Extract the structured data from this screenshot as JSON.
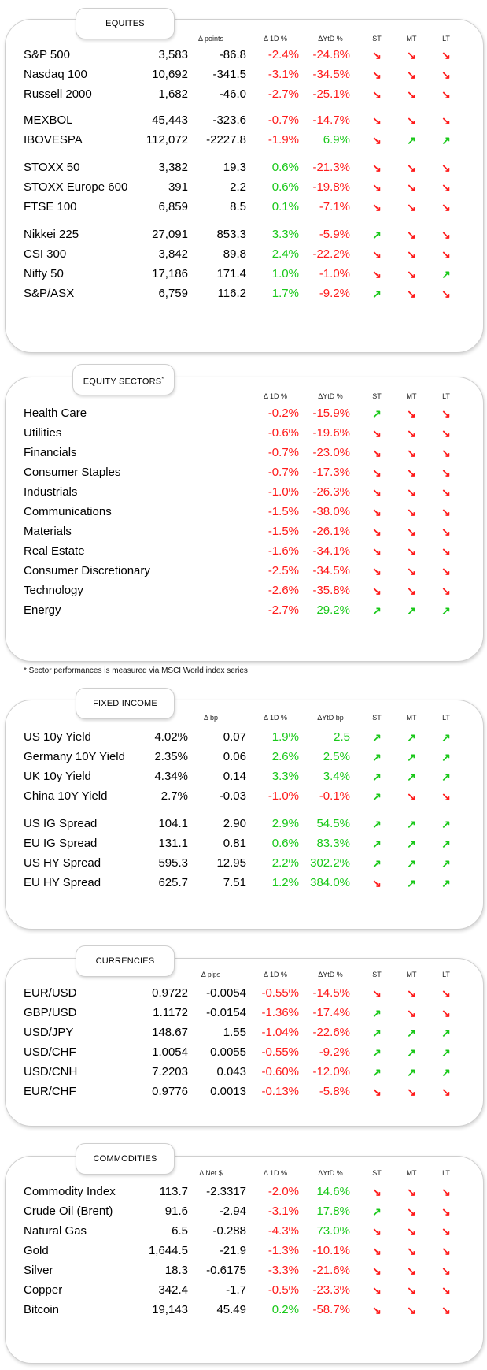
{
  "colors": {
    "negative": "#ff1a1a",
    "positive": "#19c819"
  },
  "sections": {
    "equities": {
      "title": "EQUITES",
      "headers": {
        "chg": "Δ points",
        "d1": "Δ 1D %",
        "ytd": "ΔYtD %",
        "st": "ST",
        "mt": "MT",
        "lt": "LT"
      },
      "rows": [
        {
          "name": "S&P 500",
          "value": "3,583",
          "chg": "-86.8",
          "d1": "-2.4%",
          "ytd": "-24.8%",
          "st": "↘",
          "mt": "↘",
          "lt": "↘"
        },
        {
          "name": "Nasdaq 100",
          "value": "10,692",
          "chg": "-341.5",
          "d1": "-3.1%",
          "ytd": "-34.5%",
          "st": "↘",
          "mt": "↘",
          "lt": "↘"
        },
        {
          "name": "Russell 2000",
          "value": "1,682",
          "chg": "-46.0",
          "d1": "-2.7%",
          "ytd": "-25.1%",
          "st": "↘",
          "mt": "↘",
          "lt": "↘"
        },
        {
          "name": "MEXBOL",
          "value": "45,443",
          "chg": "-323.6",
          "d1": "-0.7%",
          "ytd": "-14.7%",
          "st": "↘",
          "mt": "↘",
          "lt": "↘"
        },
        {
          "name": "IBOVESPA",
          "value": "112,072",
          "chg": "-2227.8",
          "d1": "-1.9%",
          "ytd": "6.9%",
          "st": "↘",
          "mt": "↗",
          "lt": "↗"
        },
        {
          "name": "STOXX 50",
          "value": "3,382",
          "chg": "19.3",
          "d1": "0.6%",
          "ytd": "-21.3%",
          "st": "↘",
          "mt": "↘",
          "lt": "↘"
        },
        {
          "name": "STOXX Europe 600",
          "value": "391",
          "chg": "2.2",
          "d1": "0.6%",
          "ytd": "-19.8%",
          "st": "↘",
          "mt": "↘",
          "lt": "↘"
        },
        {
          "name": "FTSE 100",
          "value": "6,859",
          "chg": "8.5",
          "d1": "0.1%",
          "ytd": "-7.1%",
          "st": "↘",
          "mt": "↘",
          "lt": "↘"
        },
        {
          "name": "Nikkei 225",
          "value": "27,091",
          "chg": "853.3",
          "d1": "3.3%",
          "ytd": "-5.9%",
          "st": "↗",
          "mt": "↘",
          "lt": "↘"
        },
        {
          "name": "CSI 300",
          "value": "3,842",
          "chg": "89.8",
          "d1": "2.4%",
          "ytd": "-22.2%",
          "st": "↘",
          "mt": "↘",
          "lt": "↘"
        },
        {
          "name": "Nifty  50",
          "value": "17,186",
          "chg": "171.4",
          "d1": "1.0%",
          "ytd": "-1.0%",
          "st": "↘",
          "mt": "↘",
          "lt": "↗"
        },
        {
          "name": "S&P/ASX",
          "value": "6,759",
          "chg": "116.2",
          "d1": "1.7%",
          "ytd": "-9.2%",
          "st": "↗",
          "mt": "↘",
          "lt": "↘"
        }
      ]
    },
    "sectors": {
      "title": "EQUITY SECTORS",
      "title_mark": "*",
      "headers": {
        "d1": "Δ 1D %",
        "ytd": "ΔYtD %",
        "st": "ST",
        "mt": "MT",
        "lt": "LT"
      },
      "rows": [
        {
          "name": "Health Care",
          "d1": "-0.2%",
          "ytd": "-15.9%",
          "st": "↗",
          "mt": "↘",
          "lt": "↘"
        },
        {
          "name": "Utilities",
          "d1": "-0.6%",
          "ytd": "-19.6%",
          "st": "↘",
          "mt": "↘",
          "lt": "↘"
        },
        {
          "name": "Financials",
          "d1": "-0.7%",
          "ytd": "-23.0%",
          "st": "↘",
          "mt": "↘",
          "lt": "↘"
        },
        {
          "name": "Consumer Staples",
          "d1": "-0.7%",
          "ytd": "-17.3%",
          "st": "↘",
          "mt": "↘",
          "lt": "↘"
        },
        {
          "name": "Industrials",
          "d1": "-1.0%",
          "ytd": "-26.3%",
          "st": "↘",
          "mt": "↘",
          "lt": "↘"
        },
        {
          "name": "Communications",
          "d1": "-1.5%",
          "ytd": "-38.0%",
          "st": "↘",
          "mt": "↘",
          "lt": "↘"
        },
        {
          "name": "Materials",
          "d1": "-1.5%",
          "ytd": "-26.1%",
          "st": "↘",
          "mt": "↘",
          "lt": "↘"
        },
        {
          "name": "Real Estate",
          "d1": "-1.6%",
          "ytd": "-34.1%",
          "st": "↘",
          "mt": "↘",
          "lt": "↘"
        },
        {
          "name": "Consumer Discretionary",
          "d1": "-2.5%",
          "ytd": "-34.5%",
          "st": "↘",
          "mt": "↘",
          "lt": "↘"
        },
        {
          "name": "Technology",
          "d1": "-2.6%",
          "ytd": "-35.8%",
          "st": "↘",
          "mt": "↘",
          "lt": "↘"
        },
        {
          "name": "Energy",
          "d1": "-2.7%",
          "ytd": "29.2%",
          "st": "↗",
          "mt": "↗",
          "lt": "↗"
        }
      ],
      "footnote": "* Sector performances is measured via MSCI World index series"
    },
    "fixed_income": {
      "title": "FIXED INCOME",
      "headers": {
        "chg": "Δ bp",
        "d1": "Δ 1D %",
        "ytd": "ΔYtD bp",
        "st": "ST",
        "mt": "MT",
        "lt": "LT"
      },
      "rows": [
        {
          "name": "US 10y Yield",
          "value": "4.02%",
          "chg": "0.07",
          "d1": "1.9%",
          "ytd": "2.5",
          "st": "↗",
          "mt": "↗",
          "lt": "↗"
        },
        {
          "name": "Germany 10Y Yield",
          "value": "2.35%",
          "chg": "0.06",
          "d1": "2.6%",
          "ytd": "2.5%",
          "st": "↗",
          "mt": "↗",
          "lt": "↗"
        },
        {
          "name": "UK 10y Yield",
          "value": "4.34%",
          "chg": "0.14",
          "d1": "3.3%",
          "ytd": "3.4%",
          "st": "↗",
          "mt": "↗",
          "lt": "↗"
        },
        {
          "name": "China 10Y Yield",
          "value": "2.7%",
          "chg": "-0.03",
          "d1": "-1.0%",
          "ytd": "-0.1%",
          "st": "↗",
          "mt": "↘",
          "lt": "↘"
        },
        {
          "name": "US IG Spread",
          "value": "104.1",
          "chg": "2.90",
          "d1": "2.9%",
          "ytd": "54.5%",
          "st": "↗",
          "mt": "↗",
          "lt": "↗"
        },
        {
          "name": "EU IG Spread",
          "value": "131.1",
          "chg": "0.81",
          "d1": "0.6%",
          "ytd": "83.3%",
          "st": "↗",
          "mt": "↗",
          "lt": "↗"
        },
        {
          "name": "US HY Spread",
          "value": "595.3",
          "chg": "12.95",
          "d1": "2.2%",
          "ytd": "302.2%",
          "st": "↗",
          "mt": "↗",
          "lt": "↗"
        },
        {
          "name": "EU HY Spread",
          "value": "625.7",
          "chg": "7.51",
          "d1": "1.2%",
          "ytd": "384.0%",
          "st": "↘",
          "mt": "↗",
          "lt": "↗"
        }
      ]
    },
    "currencies": {
      "title": "CURRENCIES",
      "headers": {
        "chg": "Δ pips",
        "d1": "Δ 1D %",
        "ytd": "ΔYtD %",
        "st": "ST",
        "mt": "MT",
        "lt": "LT"
      },
      "rows": [
        {
          "name": "EUR/USD",
          "value": "0.9722",
          "chg": "-0.0054",
          "d1": "-0.55%",
          "ytd": "-14.5%",
          "st": "↘",
          "mt": "↘",
          "lt": "↘"
        },
        {
          "name": "GBP/USD",
          "value": "1.1172",
          "chg": "-0.0154",
          "d1": "-1.36%",
          "ytd": "-17.4%",
          "st": "↗",
          "mt": "↘",
          "lt": "↘"
        },
        {
          "name": "USD/JPY",
          "value": "148.67",
          "chg": "1.55",
          "d1": "-1.04%",
          "ytd": "-22.6%",
          "st": "↗",
          "mt": "↗",
          "lt": "↗"
        },
        {
          "name": "USD/CHF",
          "value": "1.0054",
          "chg": "0.0055",
          "d1": "-0.55%",
          "ytd": "-9.2%",
          "st": "↗",
          "mt": "↗",
          "lt": "↗"
        },
        {
          "name": "USD/CNH",
          "value": "7.2203",
          "chg": "0.043",
          "d1": "-0.60%",
          "ytd": "-12.0%",
          "st": "↗",
          "mt": "↗",
          "lt": "↗"
        },
        {
          "name": "EUR/CHF",
          "value": "0.9776",
          "chg": "0.0013",
          "d1": "-0.13%",
          "ytd": "-5.8%",
          "st": "↘",
          "mt": "↘",
          "lt": "↘"
        }
      ]
    },
    "commodities": {
      "title": "COMMODITIES",
      "headers": {
        "chg": "Δ Net $",
        "d1": "Δ 1D %",
        "ytd": "ΔYtD %",
        "st": "ST",
        "mt": "MT",
        "lt": "LT"
      },
      "rows": [
        {
          "name": "Commodity Index",
          "value": "113.7",
          "chg": "-2.3317",
          "d1": "-2.0%",
          "ytd": "14.6%",
          "st": "↘",
          "mt": "↘",
          "lt": "↘"
        },
        {
          "name": "Crude Oil (Brent)",
          "value": "91.6",
          "chg": "-2.94",
          "d1": "-3.1%",
          "ytd": "17.8%",
          "st": "↗",
          "mt": "↘",
          "lt": "↘"
        },
        {
          "name": "Natural Gas",
          "value": "6.5",
          "chg": "-0.288",
          "d1": "-4.3%",
          "ytd": "73.0%",
          "st": "↘",
          "mt": "↘",
          "lt": "↘"
        },
        {
          "name": "Gold",
          "value": "1,644.5",
          "chg": "-21.9",
          "d1": "-1.3%",
          "ytd": "-10.1%",
          "st": "↘",
          "mt": "↘",
          "lt": "↘"
        },
        {
          "name": "Silver",
          "value": "18.3",
          "chg": "-0.6175",
          "d1": "-3.3%",
          "ytd": "-21.6%",
          "st": "↘",
          "mt": "↘",
          "lt": "↘"
        },
        {
          "name": "Copper",
          "value": "342.4",
          "chg": "-1.7",
          "d1": "-0.5%",
          "ytd": "-23.3%",
          "st": "↘",
          "mt": "↘",
          "lt": "↘"
        },
        {
          "name": "Bitcoin",
          "value": "19,143",
          "chg": "45.49",
          "d1": "0.2%",
          "ytd": "-58.7%",
          "st": "↘",
          "mt": "↘",
          "lt": "↘"
        }
      ]
    }
  }
}
